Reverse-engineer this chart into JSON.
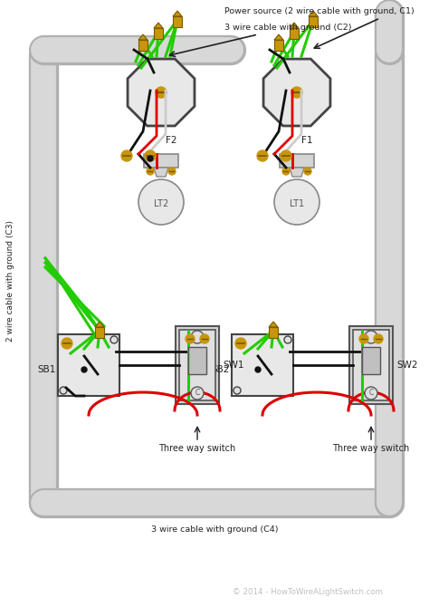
{
  "bg_color": "#ffffff",
  "fig_width": 4.74,
  "fig_height": 6.7,
  "dpi": 100,
  "labels": {
    "power_source": "Power source (2 wire cable with ground, C1)",
    "c2": "3 wire cable with ground (C2)",
    "c3": "2 wire cable with ground (C3)",
    "c4": "3 wire cable with ground (C4)",
    "lt1": "LT1",
    "lt2": "LT2",
    "sw1": "SW1",
    "sw2": "SW2",
    "sb1": "SB1",
    "sb2": "SB2",
    "f1": "F1",
    "f2": "F2",
    "three_way_left": "Three way switch",
    "three_way_right": "Three way switch",
    "copyright": "© 2014 - HowToWireALightSwitch.com"
  },
  "colors": {
    "green": "#22cc00",
    "red": "#dd0000",
    "black": "#111111",
    "white": "#ffffff",
    "gray": "#aaaaaa",
    "light_gray": "#d4d4d4",
    "med_gray": "#c0c0c0",
    "dark_gray": "#555555",
    "gold": "#c8960a",
    "gold_dark": "#7a5800",
    "conduit_outer": "#b0b0b0",
    "conduit_inner": "#d8d8d8",
    "box_fill": "#e8e8e8",
    "box_edge": "#444444",
    "switch_fill": "#e0e0e0",
    "bulb_glass": "#e8e8e8",
    "bulb_edge": "#888888",
    "wire_white": "#cccccc",
    "copyright_color": "#c0c0c0",
    "text_color": "#222222"
  }
}
